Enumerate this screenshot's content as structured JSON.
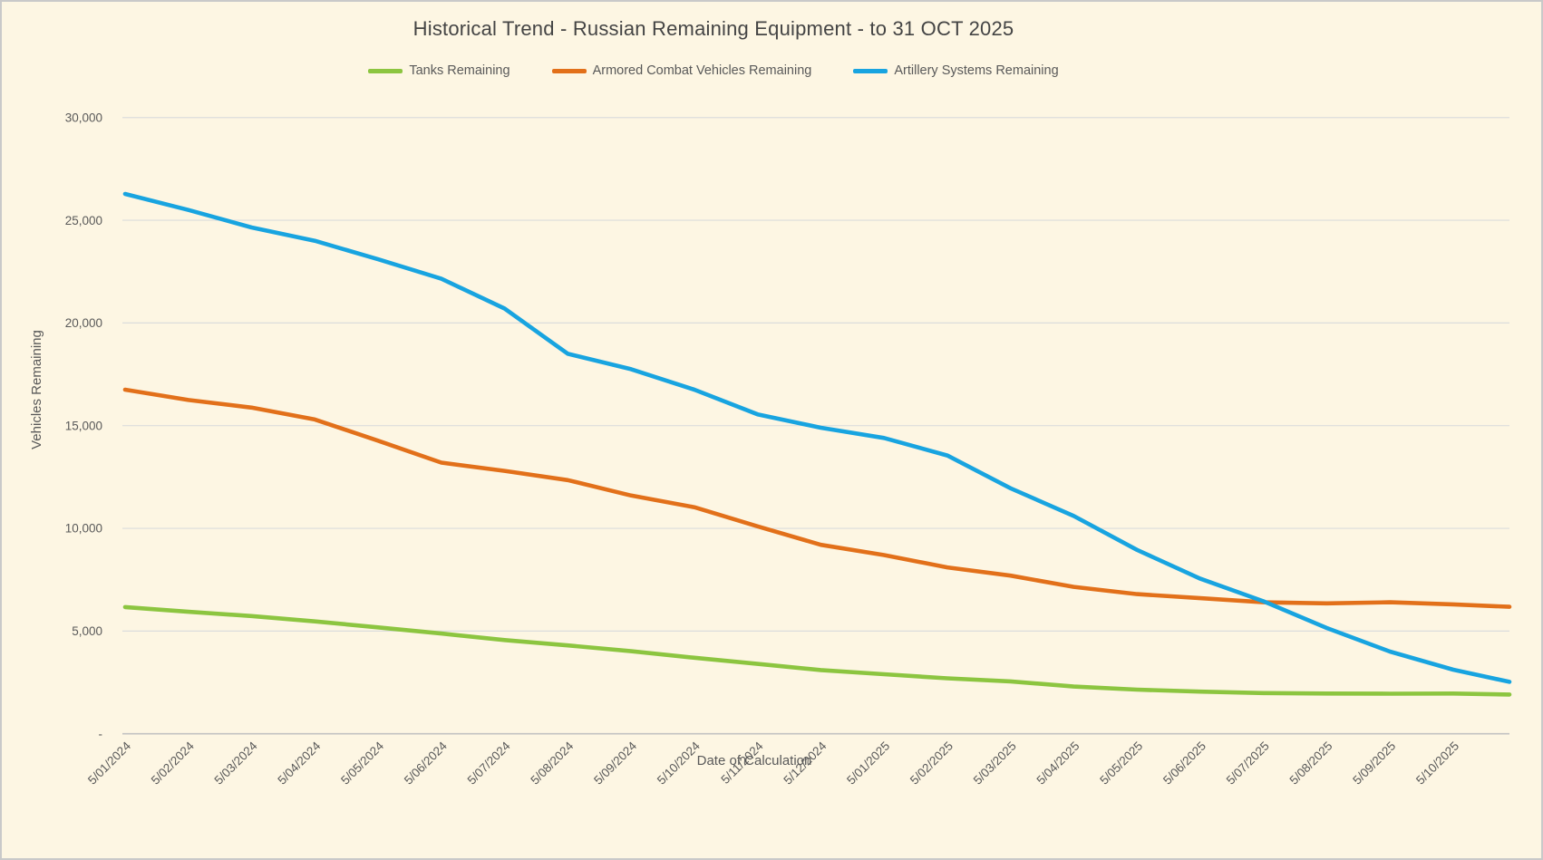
{
  "chart": {
    "title": "Historical Trend - Russian Remaining Equipment - to 31 OCT 2025",
    "x_axis_title": "Date of Calculation",
    "y_axis_title": "Vehicles Remaining"
  },
  "chart_data": {
    "type": "line",
    "title": "Historical Trend - Russian Remaining Equipment - to 31 OCT 2025",
    "xlabel": "Date of Calculation",
    "ylabel": "Vehicles Remaining",
    "ylim": [
      0,
      30000
    ],
    "y_tick_step": 5000,
    "y_tick_labels": [
      "-",
      "5,000",
      "10,000",
      "15,000",
      "20,000",
      "25,000",
      "30,000"
    ],
    "zero_tick_label": "-",
    "grid": "horizontal",
    "legend_position": "top",
    "background_color": "#FDF6E3",
    "gridline_color": "#DCDCDC",
    "axis_line_color": "#C2C2C2",
    "text_color": "#595959",
    "categories": [
      "5/01/2024",
      "5/02/2024",
      "5/03/2024",
      "5/04/2024",
      "5/05/2024",
      "5/06/2024",
      "5/07/2024",
      "5/08/2024",
      "5/09/2024",
      "5/10/2024",
      "5/11/2024",
      "5/12/2024",
      "5/01/2025",
      "5/02/2025",
      "5/03/2025",
      "5/04/2025",
      "5/05/2025",
      "5/06/2025",
      "5/07/2025",
      "5/08/2025",
      "5/09/2025",
      "5/10/2025"
    ],
    "final_point_date": "31 OCT 2025",
    "series": [
      {
        "name": "Tanks Remaining",
        "color": "#8CC540",
        "values": [
          6170,
          5940,
          5730,
          5470,
          5180,
          4880,
          4560,
          4300,
          4020,
          3700,
          3400,
          3100,
          2900,
          2700,
          2550,
          2300,
          2150,
          2050,
          1980,
          1960,
          1950,
          1960,
          1910
        ]
      },
      {
        "name": "Armored Combat Vehicles Remaining",
        "color": "#E2701A",
        "values": [
          16750,
          16250,
          15880,
          15300,
          14270,
          13200,
          12800,
          12350,
          11600,
          11030,
          10100,
          9200,
          8700,
          8100,
          7700,
          7150,
          6800,
          6600,
          6400,
          6350,
          6400,
          6300,
          6180
        ]
      },
      {
        "name": "Artillery Systems Remaining",
        "color": "#18A4E0",
        "values": [
          26280,
          25500,
          24650,
          24000,
          23100,
          22150,
          20700,
          18500,
          17750,
          16750,
          15550,
          14900,
          14400,
          13550,
          11950,
          10600,
          8950,
          7550,
          6450,
          5150,
          4000,
          3120,
          2530
        ]
      }
    ]
  }
}
